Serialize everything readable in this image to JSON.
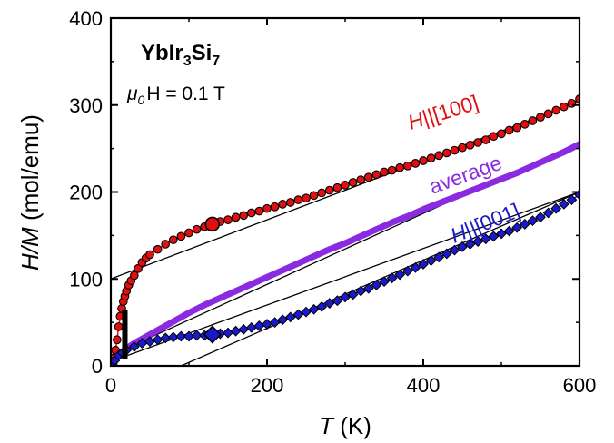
{
  "colors": {
    "axis": "#000000",
    "background": "#ffffff",
    "h100": "#e01010",
    "average": "#8a2be2",
    "h001": "#1a1acc",
    "marker_edge": "#000000",
    "fit_line": "#000000"
  },
  "annotations": {
    "compound_main": "YbIr",
    "compound_sub1": "3",
    "compound_mid": "Si",
    "compound_sub2": "7",
    "field_mu": "μ",
    "field_sub": "0",
    "field_rest": "H = 0.1 T"
  },
  "chart_data": {
    "type": "scatter",
    "xlabel_italic": "T",
    "xlabel_unit": " (K)",
    "ylabel_italic": "H/M",
    "ylabel_unit": " (mol/emu)",
    "xlim": [
      0,
      600
    ],
    "ylim": [
      0,
      400
    ],
    "xticks": [
      0,
      200,
      400,
      600
    ],
    "yticks": [
      0,
      100,
      200,
      300,
      400
    ],
    "xtick_labels": [
      "0",
      "200",
      "400",
      "600"
    ],
    "ytick_labels": [
      "0",
      "100",
      "200",
      "300",
      "400"
    ],
    "grid": false,
    "series": [
      {
        "name": "H||[100]",
        "marker": "circle",
        "points": [
          [
            2,
            4
          ],
          [
            4,
            9
          ],
          [
            6,
            18
          ],
          [
            8,
            30
          ],
          [
            10,
            45
          ],
          [
            12,
            57
          ],
          [
            14,
            66
          ],
          [
            16,
            74
          ],
          [
            18,
            80
          ],
          [
            20,
            86
          ],
          [
            23,
            93
          ],
          [
            26,
            98
          ],
          [
            30,
            104
          ],
          [
            35,
            112
          ],
          [
            40,
            119
          ],
          [
            45,
            124
          ],
          [
            50,
            128
          ],
          [
            60,
            134
          ],
          [
            70,
            140
          ],
          [
            80,
            145
          ],
          [
            90,
            149
          ],
          [
            100,
            153
          ],
          [
            110,
            157
          ],
          [
            120,
            160
          ],
          [
            130,
            163
          ],
          [
            140,
            166
          ],
          [
            150,
            168
          ],
          [
            160,
            171
          ],
          [
            170,
            173
          ],
          [
            180,
            176
          ],
          [
            190,
            178
          ],
          [
            200,
            181
          ],
          [
            210,
            183
          ],
          [
            220,
            186
          ],
          [
            230,
            188
          ],
          [
            240,
            191
          ],
          [
            250,
            193
          ],
          [
            260,
            196
          ],
          [
            270,
            199
          ],
          [
            280,
            202
          ],
          [
            290,
            205
          ],
          [
            300,
            208
          ],
          [
            310,
            211
          ],
          [
            320,
            214
          ],
          [
            330,
            217
          ],
          [
            340,
            220
          ],
          [
            350,
            223
          ],
          [
            360,
            225
          ],
          [
            370,
            228
          ],
          [
            380,
            230
          ],
          [
            390,
            233
          ],
          [
            400,
            236
          ],
          [
            410,
            239
          ],
          [
            420,
            242
          ],
          [
            430,
            245
          ],
          [
            440,
            248
          ],
          [
            450,
            251
          ],
          [
            460,
            254
          ],
          [
            470,
            257
          ],
          [
            480,
            260
          ],
          [
            490,
            264
          ],
          [
            500,
            267
          ],
          [
            510,
            271
          ],
          [
            520,
            274
          ],
          [
            530,
            278
          ],
          [
            540,
            282
          ],
          [
            550,
            286
          ],
          [
            560,
            290
          ],
          [
            570,
            294
          ],
          [
            580,
            298
          ],
          [
            590,
            302
          ],
          [
            600,
            307
          ]
        ],
        "highlight": [
          130,
          163
        ],
        "fit": [
          [
            0,
            100
          ],
          [
            600,
            304
          ]
        ]
      },
      {
        "name": "average",
        "marker": "line",
        "points": [
          [
            0,
            2
          ],
          [
            10,
            12
          ],
          [
            20,
            20
          ],
          [
            30,
            26
          ],
          [
            40,
            31
          ],
          [
            50,
            36
          ],
          [
            60,
            41
          ],
          [
            70,
            46
          ],
          [
            80,
            51
          ],
          [
            90,
            56
          ],
          [
            100,
            61
          ],
          [
            120,
            70
          ],
          [
            140,
            78
          ],
          [
            160,
            86
          ],
          [
            180,
            94
          ],
          [
            200,
            102
          ],
          [
            220,
            110
          ],
          [
            240,
            118
          ],
          [
            260,
            126
          ],
          [
            280,
            134
          ],
          [
            300,
            141
          ],
          [
            320,
            149
          ],
          [
            340,
            157
          ],
          [
            360,
            165
          ],
          [
            380,
            172
          ],
          [
            400,
            180
          ],
          [
            420,
            187
          ],
          [
            440,
            194
          ],
          [
            460,
            201
          ],
          [
            480,
            208
          ],
          [
            500,
            215
          ],
          [
            520,
            222
          ],
          [
            540,
            230
          ],
          [
            560,
            238
          ],
          [
            580,
            246
          ],
          [
            600,
            255
          ]
        ],
        "fit": [
          [
            0,
            12
          ],
          [
            600,
            257
          ]
        ]
      },
      {
        "name": "H||[001]",
        "marker": "diamond",
        "points": [
          [
            2,
            2
          ],
          [
            5,
            6
          ],
          [
            10,
            12
          ],
          [
            15,
            15
          ],
          [
            20,
            18
          ],
          [
            30,
            22
          ],
          [
            40,
            26
          ],
          [
            50,
            28
          ],
          [
            60,
            30
          ],
          [
            70,
            32
          ],
          [
            80,
            33
          ],
          [
            90,
            34
          ],
          [
            100,
            34
          ],
          [
            110,
            35
          ],
          [
            120,
            35
          ],
          [
            130,
            36
          ],
          [
            140,
            37
          ],
          [
            150,
            38
          ],
          [
            160,
            40
          ],
          [
            170,
            42
          ],
          [
            180,
            44
          ],
          [
            190,
            46
          ],
          [
            200,
            48
          ],
          [
            210,
            50
          ],
          [
            220,
            53
          ],
          [
            230,
            56
          ],
          [
            240,
            59
          ],
          [
            250,
            62
          ],
          [
            260,
            65
          ],
          [
            270,
            68
          ],
          [
            280,
            72
          ],
          [
            290,
            75
          ],
          [
            300,
            79
          ],
          [
            310,
            82
          ],
          [
            320,
            86
          ],
          [
            330,
            89
          ],
          [
            340,
            93
          ],
          [
            350,
            97
          ],
          [
            360,
            101
          ],
          [
            370,
            105
          ],
          [
            380,
            109
          ],
          [
            390,
            113
          ],
          [
            400,
            117
          ],
          [
            410,
            121
          ],
          [
            420,
            125
          ],
          [
            430,
            129
          ],
          [
            440,
            133
          ],
          [
            450,
            137
          ],
          [
            460,
            140
          ],
          [
            470,
            143
          ],
          [
            480,
            146
          ],
          [
            490,
            149
          ],
          [
            500,
            152
          ],
          [
            510,
            155
          ],
          [
            520,
            159
          ],
          [
            530,
            163
          ],
          [
            540,
            167
          ],
          [
            550,
            171
          ],
          [
            560,
            176
          ],
          [
            570,
            181
          ],
          [
            580,
            186
          ],
          [
            590,
            191
          ],
          [
            600,
            197
          ]
        ],
        "highlight": [
          130,
          36
        ],
        "fits": [
          [
            [
              0,
              5
            ],
            [
              600,
              200
            ]
          ],
          [
            [
              90,
              0
            ],
            [
              600,
              200
            ]
          ]
        ]
      }
    ],
    "cusp": {
      "x": 18,
      "y_from": 10,
      "y_to": 65
    }
  }
}
